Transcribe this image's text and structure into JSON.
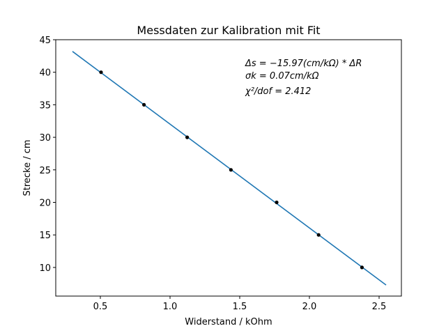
{
  "chart_data": {
    "type": "scatter",
    "title": "Messdaten zur Kalibration mit Fit",
    "xlabel": "Widerstand / kOhm",
    "ylabel": "Strecke / cm",
    "xlim": [
      0.18,
      2.66
    ],
    "ylim": [
      5.6,
      45
    ],
    "xticks": [
      0.5,
      1.0,
      1.5,
      2.0,
      2.5
    ],
    "xtick_labels": [
      "0.5",
      "1.0",
      "1.5",
      "2.0",
      "2.5"
    ],
    "yticks": [
      10,
      15,
      20,
      25,
      30,
      35,
      40,
      45
    ],
    "ytick_labels": [
      "10",
      "15",
      "20",
      "25",
      "30",
      "35",
      "40",
      "45"
    ],
    "grid": false,
    "series": [
      {
        "kind": "points",
        "color": "#000000",
        "x": [
          0.505,
          0.813,
          1.123,
          1.437,
          1.765,
          2.066,
          2.377
        ],
        "y": [
          40,
          35,
          30,
          25,
          20,
          15,
          10
        ]
      },
      {
        "kind": "line",
        "color": "#1f77b4",
        "x": [
          0.3,
          2.55
        ],
        "y": [
          43.2,
          7.3
        ]
      }
    ],
    "annotations": [
      "Δs = −15.97(cm/kΩ) * ΔR",
      "σk = 0.07cm/kΩ",
      "χ²/dof = 2.412"
    ]
  }
}
